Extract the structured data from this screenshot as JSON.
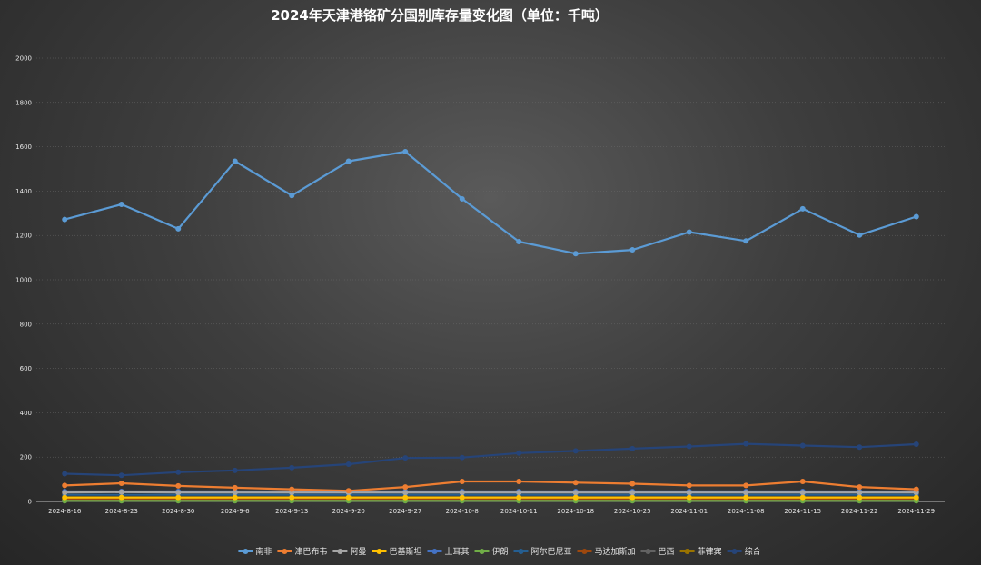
{
  "chart_data": {
    "type": "line",
    "title": "2024年天津港铬矿分国别库存量变化图（单位：千吨）",
    "xlabel": "",
    "ylabel": "",
    "ylim": [
      0,
      2000
    ],
    "yticks": [
      0,
      200,
      400,
      600,
      800,
      1000,
      1200,
      1400,
      1600,
      1800,
      2000
    ],
    "grid": true,
    "legend_position": "bottom",
    "categories": [
      "2024-8-16",
      "2024-8-23",
      "2024-8-30",
      "2024-9-6",
      "2024-9-13",
      "2024-9-20",
      "2024-9-27",
      "2024-10-8",
      "2024-10-11",
      "2024-10-18",
      "2024-10-25",
      "2024-11-01",
      "2024-11-08",
      "2024-11-15",
      "2024-11-22",
      "2024-11-29"
    ],
    "series": [
      {
        "name": "南非",
        "color": "#5b9bd5",
        "values": [
          1272,
          1340,
          1230,
          1535,
          1380,
          1535,
          1578,
          1365,
          1172,
          1118,
          1135,
          1215,
          1175,
          1320,
          1202,
          1285
        ]
      },
      {
        "name": "津巴布韦",
        "color": "#ed7d31",
        "values": [
          72,
          82,
          70,
          62,
          55,
          48,
          65,
          90,
          90,
          85,
          80,
          72,
          72,
          90,
          65,
          55
        ]
      },
      {
        "name": "阿曼",
        "color": "#a5a5a5",
        "values": [
          40,
          42,
          40,
          40,
          40,
          40,
          40,
          40,
          40,
          40,
          40,
          40,
          40,
          40,
          40,
          40
        ]
      },
      {
        "name": "巴基斯坦",
        "color": "#ffc000",
        "values": [
          18,
          18,
          18,
          18,
          18,
          18,
          18,
          18,
          18,
          18,
          18,
          18,
          18,
          18,
          18,
          18
        ]
      },
      {
        "name": "土耳其",
        "color": "#4472c4",
        "values": [
          45,
          45,
          45,
          45,
          45,
          45,
          45,
          45,
          45,
          45,
          45,
          45,
          45,
          45,
          45,
          45
        ]
      },
      {
        "name": "伊朗",
        "color": "#70ad47",
        "values": [
          3,
          3,
          3,
          3,
          3,
          3,
          3,
          3,
          3,
          3,
          3,
          3,
          3,
          3,
          3,
          3
        ]
      },
      {
        "name": "阿尔巴尼亚",
        "color": "#255e91",
        "values": [
          30,
          30,
          30,
          30,
          30,
          30,
          30,
          30,
          30,
          30,
          30,
          30,
          30,
          30,
          30,
          30
        ]
      },
      {
        "name": "马达加斯加",
        "color": "#9e480e",
        "values": [
          12,
          12,
          12,
          12,
          12,
          12,
          12,
          12,
          12,
          12,
          12,
          12,
          12,
          12,
          12,
          12
        ]
      },
      {
        "name": "巴西",
        "color": "#636363",
        "values": [
          8,
          8,
          8,
          8,
          8,
          8,
          8,
          8,
          8,
          8,
          8,
          8,
          8,
          8,
          8,
          8
        ]
      },
      {
        "name": "菲律宾",
        "color": "#997300",
        "values": [
          5,
          5,
          5,
          5,
          5,
          5,
          5,
          5,
          5,
          5,
          5,
          5,
          5,
          5,
          5,
          5
        ]
      },
      {
        "name": "综合",
        "color": "#264478",
        "values": [
          125,
          118,
          132,
          140,
          152,
          168,
          196,
          198,
          218,
          228,
          238,
          248,
          260,
          252,
          245,
          258
        ]
      }
    ]
  }
}
